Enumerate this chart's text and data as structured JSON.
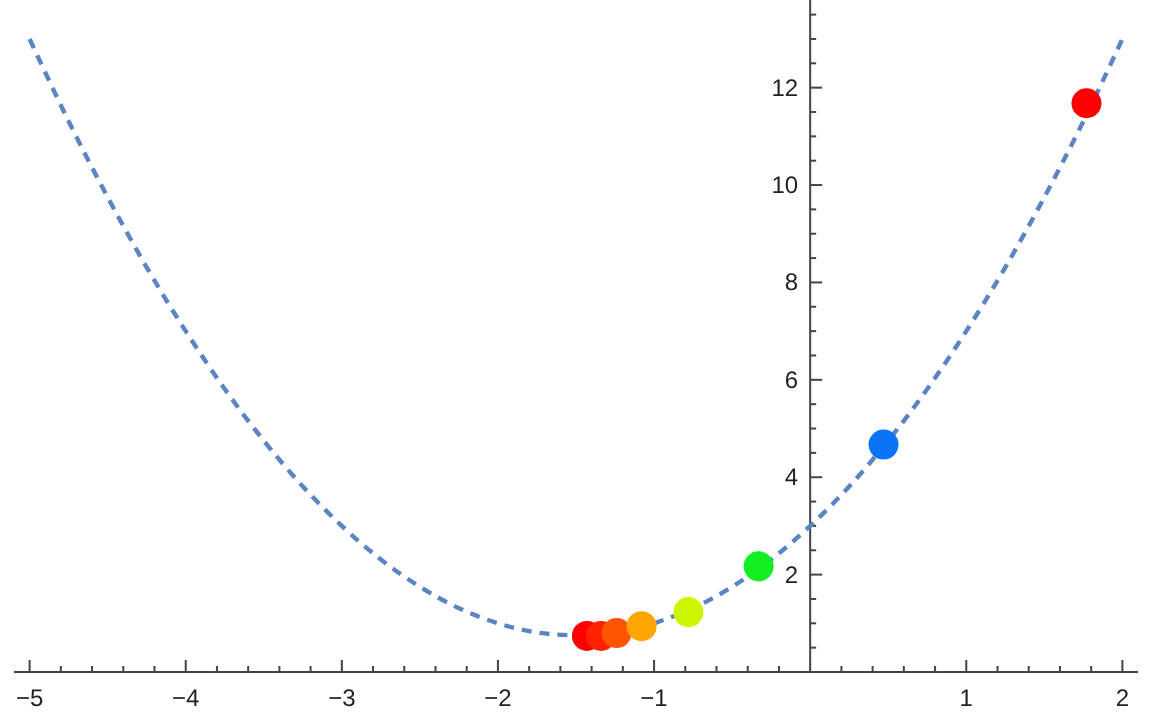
{
  "chart_data": {
    "type": "line",
    "xlim": [
      -5.1,
      2.1
    ],
    "ylim": [
      0,
      13.8
    ],
    "xticks": [
      -5,
      {
        "value": -4.8,
        "label": null
      },
      {
        "value": -4.6,
        "label": null
      },
      {
        "value": -4.4,
        "label": null
      },
      {
        "value": -4.2,
        "label": null
      },
      -4,
      {
        "value": -3.8,
        "label": null
      },
      {
        "value": -3.6,
        "label": null
      },
      {
        "value": -3.4,
        "label": null
      },
      {
        "value": -3.2,
        "label": null
      },
      -3,
      {
        "value": -2.8,
        "label": null
      },
      {
        "value": -2.6,
        "label": null
      },
      {
        "value": -2.4,
        "label": null
      },
      {
        "value": -2.2,
        "label": null
      },
      -2,
      {
        "value": -1.8,
        "label": null
      },
      {
        "value": -1.6,
        "label": null
      },
      {
        "value": -1.4,
        "label": null
      },
      {
        "value": -1.2,
        "label": null
      },
      -1,
      {
        "value": -0.8,
        "label": null
      },
      {
        "value": -0.6,
        "label": null
      },
      {
        "value": -0.4,
        "label": null
      },
      {
        "value": -0.2,
        "label": null
      },
      {
        "value": 0.2,
        "label": null
      },
      {
        "value": 0.4,
        "label": null
      },
      {
        "value": 0.6,
        "label": null
      },
      {
        "value": 0.8,
        "label": null
      },
      1,
      {
        "value": 1.2,
        "label": null
      },
      {
        "value": 1.4,
        "label": null
      },
      {
        "value": 1.6,
        "label": null
      },
      {
        "value": 1.8,
        "label": null
      },
      2
    ],
    "yticks": [
      {
        "value": 0.5,
        "label": null
      },
      {
        "value": 1,
        "label": null
      },
      {
        "value": 1.5,
        "label": null
      },
      2,
      {
        "value": 2.5,
        "label": null
      },
      {
        "value": 3,
        "label": null
      },
      {
        "value": 3.5,
        "label": null
      },
      4,
      {
        "value": 4.5,
        "label": null
      },
      {
        "value": 5,
        "label": null
      },
      {
        "value": 5.5,
        "label": null
      },
      6,
      {
        "value": 6.5,
        "label": null
      },
      {
        "value": 7,
        "label": null
      },
      {
        "value": 7.5,
        "label": null
      },
      8,
      {
        "value": 8.5,
        "label": null
      },
      {
        "value": 9,
        "label": null
      },
      {
        "value": 9.5,
        "label": null
      },
      10,
      {
        "value": 10.5,
        "label": null
      },
      {
        "value": 11,
        "label": null
      },
      {
        "value": 11.5,
        "label": null
      },
      12,
      {
        "value": 12.5,
        "label": null
      },
      {
        "value": 13,
        "label": null
      },
      {
        "value": 13.5,
        "label": null
      }
    ],
    "grid": false,
    "series": [
      {
        "color": "#5b84c4",
        "line_style": "dashed",
        "marker": "none",
        "x": [
          -5,
          -4.75,
          -4.5,
          -4.25,
          -4,
          -3.75,
          -3.5,
          -3.25,
          -3,
          -2.75,
          -2.5,
          -2.25,
          -2,
          -1.75,
          -1.5,
          -1.25,
          -1,
          -0.75,
          -0.5,
          -0.25,
          0,
          0.25,
          0.5,
          0.75,
          1,
          1.25,
          1.5,
          1.75,
          2
        ],
        "values": [
          13,
          11.31,
          9.75,
          8.31,
          7,
          5.81,
          4.75,
          3.81,
          3,
          2.31,
          1.75,
          1.31,
          1,
          0.81,
          0.75,
          null,
          1,
          1.31,
          1.75,
          2.31,
          3,
          3.81,
          4.75,
          5.81,
          7,
          8.31,
          9.75,
          11.31,
          13
        ]
      },
      {
        "type": "scatter",
        "marker": "circle",
        "x": [
          -1.43,
          -1.34,
          -1.24,
          -1.08,
          -0.78,
          -0.33,
          0.47,
          1.77
        ],
        "values": [
          0.74,
          0.74,
          0.8,
          0.94,
          1.23,
          2.17,
          4.67,
          11.68
        ],
        "colors": [
          "#ff0000",
          "#ff2200",
          "#ff5500",
          "#ffa500",
          "#ccf500",
          "#11ee22",
          "#0a74f5",
          "#ff0000"
        ]
      }
    ]
  }
}
